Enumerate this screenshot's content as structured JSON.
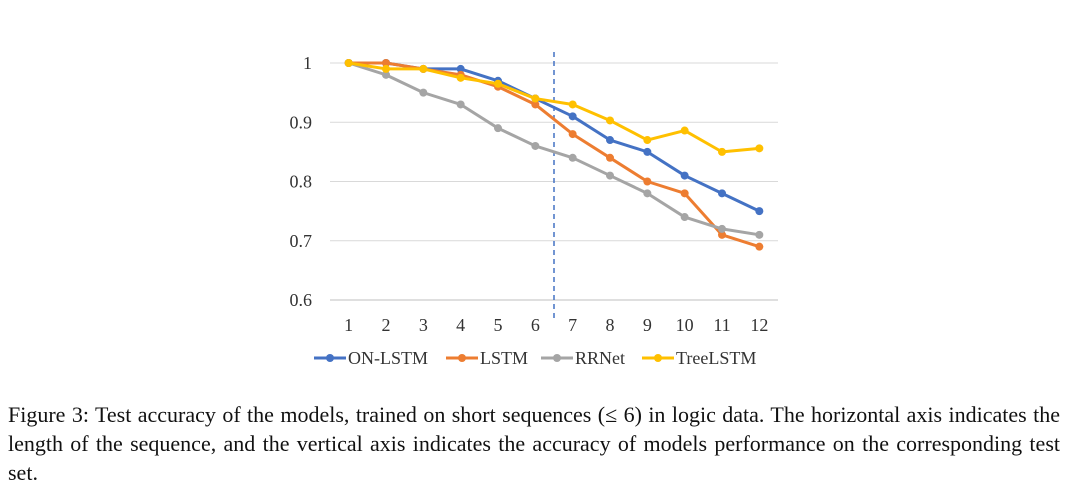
{
  "chart_data": {
    "type": "line",
    "x": [
      1,
      2,
      3,
      4,
      5,
      6,
      7,
      8,
      9,
      10,
      11,
      12
    ],
    "ylim": [
      0.6,
      1.0
    ],
    "yticks": [
      "0.6",
      "0.7",
      "0.8",
      "0.9",
      "1"
    ],
    "xticks": [
      "1",
      "2",
      "3",
      "4",
      "5",
      "6",
      "7",
      "8",
      "9",
      "10",
      "11",
      "12"
    ],
    "grid": "horizontal",
    "legend_position": "bottom",
    "divider_after_x": 6.5,
    "series": [
      {
        "name": "ON-LSTM",
        "color": "#4472C4",
        "values": [
          1.0,
          1.0,
          0.99,
          0.99,
          0.97,
          0.94,
          0.91,
          0.87,
          0.85,
          0.81,
          0.78,
          0.75
        ]
      },
      {
        "name": "LSTM",
        "color": "#ED7D31",
        "values": [
          1.0,
          1.0,
          0.99,
          0.98,
          0.96,
          0.93,
          0.88,
          0.84,
          0.8,
          0.78,
          0.71,
          0.69
        ]
      },
      {
        "name": "RRNet",
        "color": "#A5A5A5",
        "values": [
          1.0,
          0.98,
          0.95,
          0.93,
          0.89,
          0.86,
          0.84,
          0.81,
          0.78,
          0.74,
          0.72,
          0.71
        ]
      },
      {
        "name": "TreeLSTM",
        "color": "#FFC000",
        "values": [
          1.0,
          0.99,
          0.99,
          0.975,
          0.965,
          0.94,
          0.93,
          0.903,
          0.87,
          0.886,
          0.85,
          0.856
        ]
      }
    ]
  },
  "caption": {
    "text": "Figure 3: Test accuracy of the models, trained on short sequences (≤ 6) in logic data. The horizontal axis indicates the length of the sequence, and the vertical axis indicates the accuracy of models performance on the corresponding test set."
  }
}
